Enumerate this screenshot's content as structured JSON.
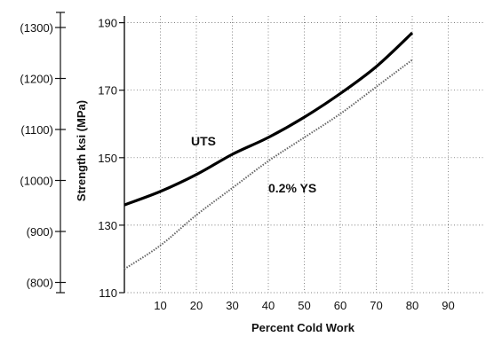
{
  "chart_data": {
    "type": "line",
    "title": "",
    "xlabel": "Percent Cold Work",
    "ylabel": "Strength ksi (MPa)",
    "xlim": [
      0,
      100
    ],
    "ylim": [
      110,
      192
    ],
    "grid": true,
    "x_ticks": [
      10,
      20,
      30,
      40,
      50,
      60,
      70,
      80,
      90
    ],
    "y_ticks_ksi": [
      110,
      130,
      150,
      170,
      190
    ],
    "y_ticks_mpa": [
      "(800)",
      "(900)",
      "(1000)",
      "(1100)",
      "(1200)",
      "(1300)"
    ],
    "mpa_tick_values": [
      800,
      900,
      1000,
      1100,
      1200,
      1300
    ],
    "series": [
      {
        "name": "UTS",
        "style": "solid",
        "color": "#000000",
        "x": [
          0,
          10,
          20,
          30,
          40,
          50,
          60,
          70,
          80
        ],
        "y": [
          136,
          140,
          145,
          151,
          156,
          162,
          169,
          177,
          187
        ]
      },
      {
        "name": "0.2% YS",
        "style": "dotted",
        "color": "#666666",
        "x": [
          0,
          10,
          20,
          30,
          40,
          50,
          60,
          70,
          80
        ],
        "y": [
          117,
          124,
          133,
          141,
          149,
          156,
          163,
          171,
          179
        ]
      }
    ]
  }
}
